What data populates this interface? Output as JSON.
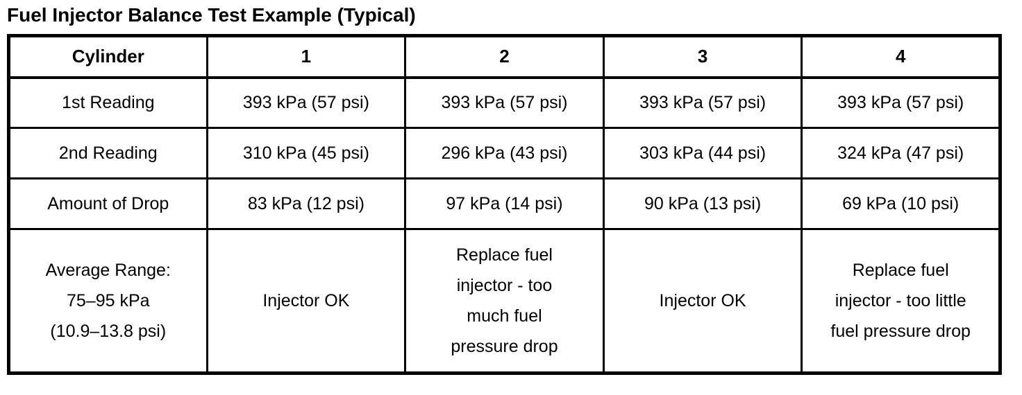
{
  "title": "Fuel Injector Balance Test Example (Typical)",
  "table": {
    "header": [
      "Cylinder",
      "1",
      "2",
      "3",
      "4"
    ],
    "rows": [
      {
        "label": "1st Reading",
        "cells": [
          "393 kPa (57 psi)",
          "393 kPa (57 psi)",
          "393 kPa (57 psi)",
          "393 kPa (57 psi)"
        ]
      },
      {
        "label": "2nd Reading",
        "cells": [
          "310 kPa (45 psi)",
          "296 kPa (43 psi)",
          "303 kPa (44 psi)",
          "324 kPa (47 psi)"
        ]
      },
      {
        "label": "Amount of Drop",
        "cells": [
          "83 kPa (12 psi)",
          "97 kPa (14 psi)",
          "90 kPa (13 psi)",
          "69 kPa (10 psi)"
        ]
      },
      {
        "label": "Average Range:\n75–95 kPa\n(10.9–13.8 psi)",
        "cells": [
          "Injector OK",
          "Replace fuel\ninjector - too\nmuch fuel\npressure drop",
          "Injector OK",
          "Replace fuel\ninjector - too little\nfuel pressure drop"
        ]
      }
    ]
  }
}
